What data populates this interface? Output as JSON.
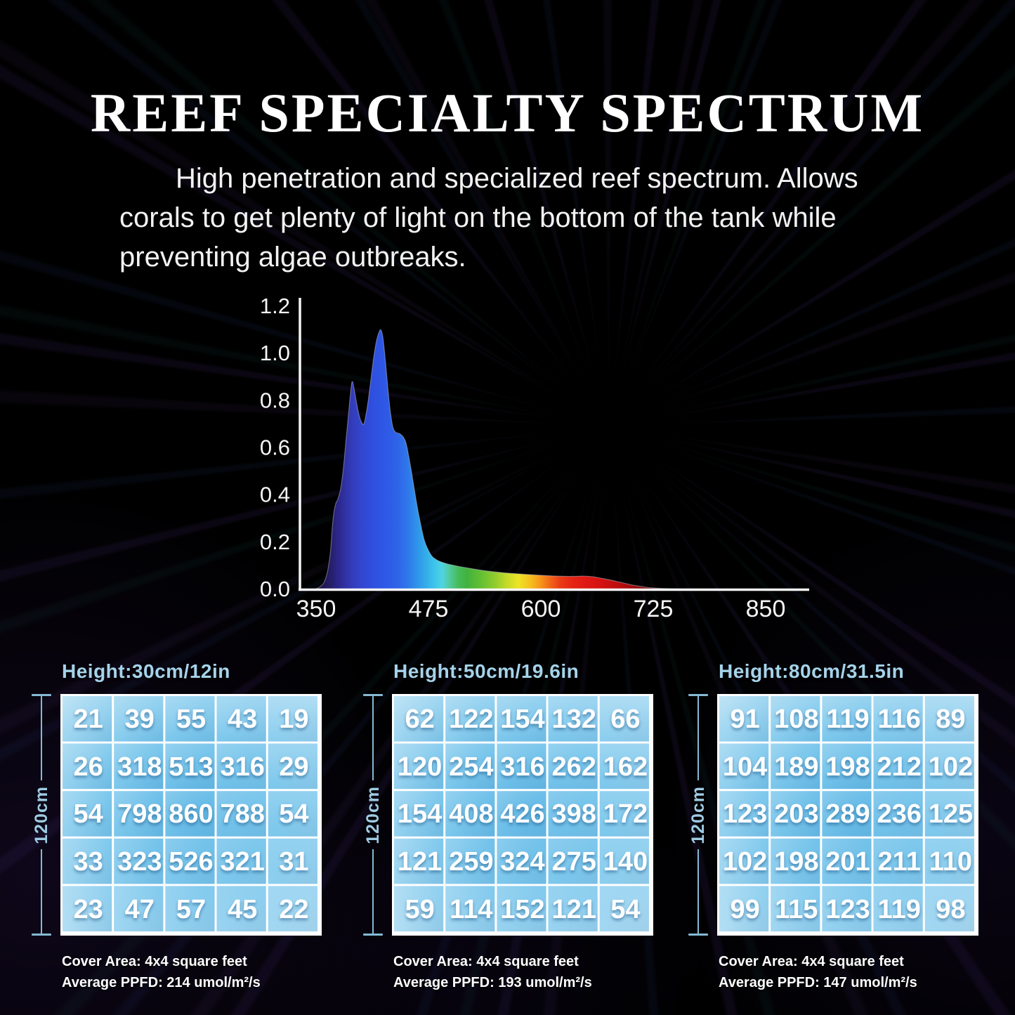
{
  "header": {
    "title": "REEF SPECIALTY SPECTRUM",
    "description_lines": [
      "High penetration and specialized reef spectrum. Allows",
      "corals to get plenty of light on the bottom of the tank while",
      "preventing algae outbreaks."
    ]
  },
  "chart_data": {
    "type": "area",
    "title": "",
    "xlabel": "",
    "ylabel": "",
    "xlim": [
      350,
      850
    ],
    "ylim": [
      0,
      1.2
    ],
    "grid": false,
    "legend": false,
    "x_ticks": [
      350,
      475,
      600,
      725,
      850
    ],
    "y_ticks": [
      0.0,
      0.2,
      0.4,
      0.6,
      0.8,
      1.0,
      1.2
    ],
    "curve": [
      [
        348,
        0
      ],
      [
        354,
        0.01
      ],
      [
        359,
        0.03
      ],
      [
        363,
        0.08
      ],
      [
        366,
        0.16
      ],
      [
        368,
        0.26
      ],
      [
        370,
        0.33
      ],
      [
        372,
        0.365
      ],
      [
        374,
        0.38
      ],
      [
        377,
        0.42
      ],
      [
        380,
        0.5
      ],
      [
        383,
        0.62
      ],
      [
        386,
        0.74
      ],
      [
        388,
        0.82
      ],
      [
        390,
        0.88
      ],
      [
        392,
        0.855
      ],
      [
        395,
        0.79
      ],
      [
        398,
        0.735
      ],
      [
        401,
        0.705
      ],
      [
        403,
        0.7
      ],
      [
        405,
        0.73
      ],
      [
        408,
        0.8
      ],
      [
        411,
        0.89
      ],
      [
        414,
        0.98
      ],
      [
        417,
        1.05
      ],
      [
        420,
        1.09
      ],
      [
        422,
        1.1
      ],
      [
        424,
        1.075
      ],
      [
        426,
        1.01
      ],
      [
        428,
        0.93
      ],
      [
        430,
        0.845
      ],
      [
        432,
        0.77
      ],
      [
        434,
        0.715
      ],
      [
        436,
        0.68
      ],
      [
        439,
        0.665
      ],
      [
        443,
        0.66
      ],
      [
        447,
        0.645
      ],
      [
        450,
        0.62
      ],
      [
        453,
        0.565
      ],
      [
        456,
        0.5
      ],
      [
        459,
        0.43
      ],
      [
        462,
        0.36
      ],
      [
        465,
        0.3
      ],
      [
        468,
        0.245
      ],
      [
        471,
        0.2
      ],
      [
        475,
        0.165
      ],
      [
        479,
        0.14
      ],
      [
        484,
        0.125
      ],
      [
        490,
        0.115
      ],
      [
        497,
        0.107
      ],
      [
        505,
        0.1
      ],
      [
        513,
        0.094
      ],
      [
        522,
        0.088
      ],
      [
        532,
        0.082
      ],
      [
        544,
        0.076
      ],
      [
        557,
        0.071
      ],
      [
        570,
        0.067
      ],
      [
        584,
        0.063
      ],
      [
        598,
        0.06
      ],
      [
        612,
        0.057
      ],
      [
        626,
        0.055
      ],
      [
        638,
        0.055
      ],
      [
        648,
        0.056
      ],
      [
        656,
        0.054
      ],
      [
        663,
        0.05
      ],
      [
        670,
        0.045
      ],
      [
        678,
        0.039
      ],
      [
        686,
        0.032
      ],
      [
        694,
        0.025
      ],
      [
        702,
        0.018
      ],
      [
        710,
        0.013
      ],
      [
        719,
        0.008
      ],
      [
        729,
        0.005
      ],
      [
        740,
        0.003
      ],
      [
        752,
        0.0015
      ],
      [
        766,
        0.0008
      ],
      [
        785,
        0
      ]
    ],
    "spectrum_gradient": [
      {
        "nm": 350,
        "color": "#160c38"
      },
      {
        "nm": 365,
        "color": "#251d66"
      },
      {
        "nm": 378,
        "color": "#2e2c96"
      },
      {
        "nm": 390,
        "color": "#333cba"
      },
      {
        "nm": 402,
        "color": "#3247d2"
      },
      {
        "nm": 415,
        "color": "#2f51e0"
      },
      {
        "nm": 428,
        "color": "#2e59e6"
      },
      {
        "nm": 440,
        "color": "#2e63e8"
      },
      {
        "nm": 452,
        "color": "#2f78ea"
      },
      {
        "nm": 462,
        "color": "#2f93ea"
      },
      {
        "nm": 472,
        "color": "#33ace9"
      },
      {
        "nm": 481,
        "color": "#3cc3ec"
      },
      {
        "nm": 490,
        "color": "#4fd4e2"
      },
      {
        "nm": 498,
        "color": "#52cba0"
      },
      {
        "nm": 508,
        "color": "#46bb5c"
      },
      {
        "nm": 518,
        "color": "#42b23c"
      },
      {
        "nm": 532,
        "color": "#5fbe34"
      },
      {
        "nm": 548,
        "color": "#8ecb2e"
      },
      {
        "nm": 562,
        "color": "#c4da29"
      },
      {
        "nm": 575,
        "color": "#eee426"
      },
      {
        "nm": 588,
        "color": "#f6c01e"
      },
      {
        "nm": 600,
        "color": "#f69419"
      },
      {
        "nm": 612,
        "color": "#f05f18"
      },
      {
        "nm": 622,
        "color": "#e93a16"
      },
      {
        "nm": 635,
        "color": "#e42414"
      },
      {
        "nm": 650,
        "color": "#df1813"
      },
      {
        "nm": 668,
        "color": "#d31111"
      },
      {
        "nm": 688,
        "color": "#b80d0d"
      },
      {
        "nm": 710,
        "color": "#8f0808"
      },
      {
        "nm": 735,
        "color": "#5a0404"
      },
      {
        "nm": 765,
        "color": "#2a0101"
      },
      {
        "nm": 800,
        "color": "#000000"
      },
      {
        "nm": 850,
        "color": "#000000"
      }
    ]
  },
  "tables": [
    {
      "title": "Height:30cm/12in",
      "side_label": "120cm",
      "rows": [
        [
          21,
          39,
          55,
          43,
          19
        ],
        [
          26,
          318,
          513,
          316,
          29
        ],
        [
          54,
          798,
          860,
          788,
          54
        ],
        [
          33,
          323,
          526,
          321,
          31
        ],
        [
          23,
          47,
          57,
          45,
          22
        ]
      ],
      "cover_area": "Cover Area: 4x4 square feet",
      "avg_ppfd": "Average PPFD: 214 umol/m²/s"
    },
    {
      "title": "Height:50cm/19.6in",
      "side_label": "120cm",
      "rows": [
        [
          62,
          122,
          154,
          132,
          66
        ],
        [
          120,
          254,
          316,
          262,
          162
        ],
        [
          154,
          408,
          426,
          398,
          172
        ],
        [
          121,
          259,
          324,
          275,
          140
        ],
        [
          59,
          114,
          152,
          121,
          54
        ]
      ],
      "cover_area": "Cover Area: 4x4 square feet",
      "avg_ppfd": "Average PPFD: 193 umol/m²/s"
    },
    {
      "title": "Height:80cm/31.5in",
      "side_label": "120cm",
      "rows": [
        [
          91,
          108,
          119,
          116,
          89
        ],
        [
          104,
          189,
          198,
          212,
          102
        ],
        [
          123,
          203,
          289,
          236,
          125
        ],
        [
          102,
          198,
          201,
          211,
          110
        ],
        [
          99,
          115,
          123,
          119,
          98
        ]
      ],
      "cover_area": "Cover Area: 4x4 square feet",
      "avg_ppfd": "Average PPFD: 147 umol/m²/s"
    }
  ],
  "colors": {
    "background": "#000000",
    "accent_blue": "#a5d3ea",
    "dimension_line": "#85b9d3",
    "axis": "#f5f5f5",
    "table_center_blue": "#5fb8e6",
    "table_edge_blue": "#d4edfa",
    "grid_line": "#ffffff"
  }
}
